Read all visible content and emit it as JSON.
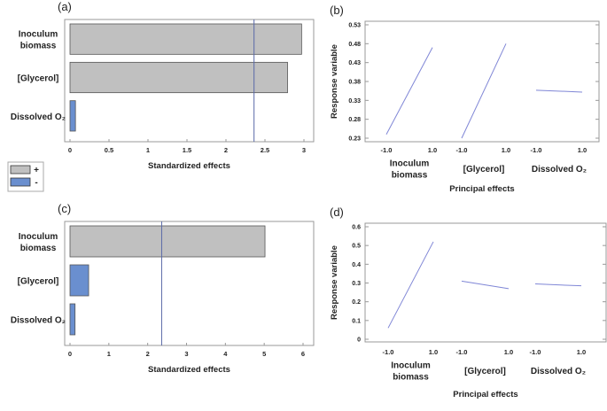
{
  "chart_data": [
    {
      "panel": "(a)",
      "type": "bar",
      "orientation": "horizontal",
      "categories": [
        "Inoculum biomass",
        "[Glycerol]",
        "Dissolved O₂"
      ],
      "values": [
        2.97,
        2.79,
        0.07
      ],
      "signs": [
        "+",
        "+",
        "-"
      ],
      "xlabel": "Standardized effects",
      "xlim": [
        0,
        3
      ],
      "ticks": [
        "0",
        "0.5",
        "1",
        "1.5",
        "2",
        "2.5",
        "3"
      ],
      "reference_line": 2.36
    },
    {
      "panel": "(b)",
      "type": "line",
      "ylabel": "Response variable",
      "xlabel": "Principal effects",
      "ylim": [
        0.23,
        0.53
      ],
      "yticks": [
        "0.23",
        "0.28",
        "0.33",
        "0.38",
        "0.43",
        "0.48",
        "0.53"
      ],
      "levels": [
        "-1.0",
        "1.0"
      ],
      "series": [
        {
          "name": "Inoculum biomass",
          "values": [
            0.24,
            0.47
          ]
        },
        {
          "name": "[Glycerol]",
          "values": [
            0.23,
            0.48
          ]
        },
        {
          "name": "Dissolved O₂",
          "values": [
            0.357,
            0.352
          ]
        }
      ]
    },
    {
      "panel": "(c)",
      "type": "bar",
      "orientation": "horizontal",
      "categories": [
        "Inoculum biomass",
        "[Glycerol]",
        "Dissolved O₂"
      ],
      "values": [
        5.02,
        0.48,
        0.13
      ],
      "signs": [
        "+",
        "-",
        "-"
      ],
      "xlabel": "Standardized effects",
      "xlim": [
        0,
        6
      ],
      "ticks": [
        "0",
        "1",
        "2",
        "3",
        "4",
        "5",
        "6"
      ],
      "reference_line": 2.36
    },
    {
      "panel": "(d)",
      "type": "line",
      "ylabel": "Response variable",
      "xlabel": "Principal effects",
      "ylim": [
        0,
        0.6
      ],
      "yticks": [
        "0",
        "0.1",
        "0.2",
        "0.3",
        "0.4",
        "0.5",
        "0.6"
      ],
      "levels": [
        "-1.0",
        "1.0"
      ],
      "series": [
        {
          "name": "Inoculum biomass",
          "values": [
            0.06,
            0.52
          ]
        },
        {
          "name": "[Glycerol]",
          "values": [
            0.31,
            0.27
          ]
        },
        {
          "name": "Dissolved O₂",
          "values": [
            0.295,
            0.285
          ]
        }
      ]
    }
  ],
  "legend": {
    "items": [
      {
        "label": "+",
        "color": "#c0c0c0"
      },
      {
        "label": "-",
        "color": "#6a8fcf"
      }
    ]
  },
  "colors": {
    "positive": "#c0c0c0",
    "negative": "#6a8fcf",
    "line": "#7f86d6",
    "axis": "#999999"
  }
}
